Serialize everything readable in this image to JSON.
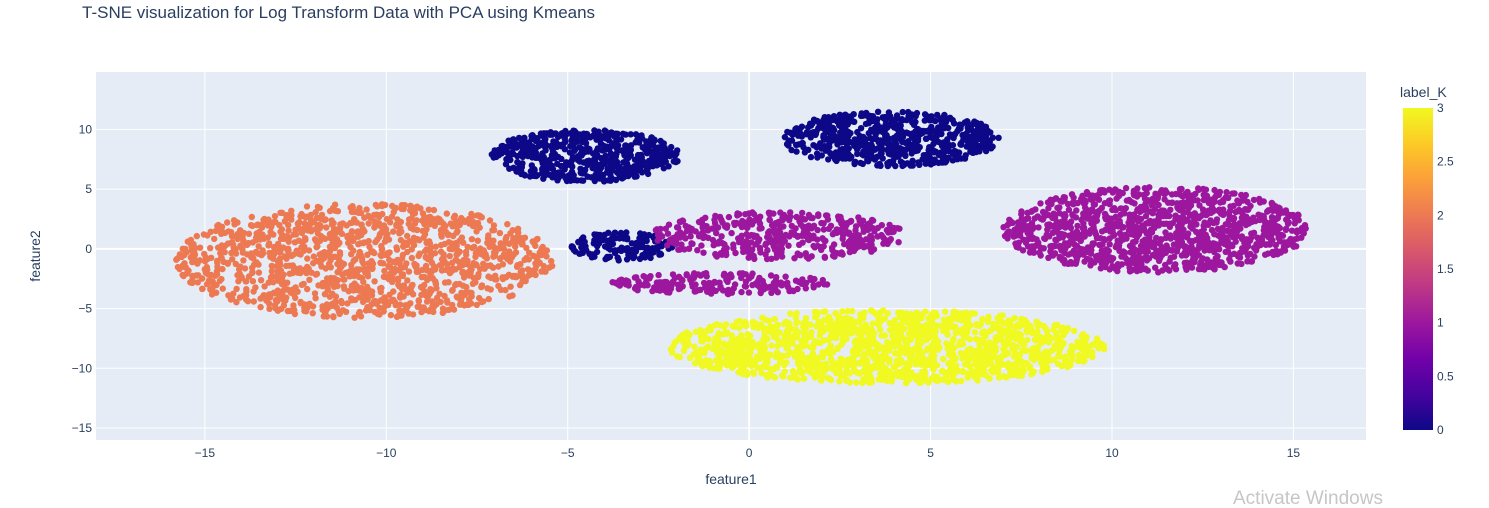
{
  "chart_data": {
    "type": "scatter",
    "title": "T-SNE visualization for Log Transform Data with PCA using Kmeans",
    "xlabel": "feature1",
    "ylabel": "feature2",
    "xlim": [
      -18,
      17
    ],
    "ylim": [
      -16,
      14.8
    ],
    "x_ticks": [
      -15,
      -10,
      -5,
      0,
      5,
      10,
      15
    ],
    "y_ticks": [
      -15,
      -10,
      -5,
      0,
      5,
      10
    ],
    "x_tick_labels": [
      "−15",
      "−10",
      "−5",
      "0",
      "5",
      "10",
      "15"
    ],
    "y_tick_labels": [
      "−15",
      "−10",
      "−5",
      "0",
      "5",
      "10"
    ],
    "grid": true,
    "colorbar": {
      "title": "label_K",
      "range": [
        0,
        3
      ],
      "ticks": [
        0,
        0.5,
        1,
        1.5,
        2,
        2.5,
        3
      ],
      "tick_labels": [
        "0",
        "0.5",
        "1",
        "1.5",
        "2",
        "2.5",
        "3"
      ],
      "colors": [
        "#0d0887",
        "#46039f",
        "#7201a8",
        "#9c179e",
        "#bd3786",
        "#d8576b",
        "#ed7953",
        "#fb9f3a",
        "#fdca26",
        "#f0f921"
      ]
    },
    "clusters": [
      {
        "label": 0,
        "color": "#0d0887",
        "center": [
          -4.5,
          7.8
        ],
        "spread": [
          2.6,
          2.2
        ],
        "count": 520
      },
      {
        "label": 0,
        "color": "#0d0887",
        "center": [
          3.9,
          9.2
        ],
        "spread": [
          3.0,
          2.3
        ],
        "count": 620
      },
      {
        "label": 0,
        "color": "#0d0887",
        "center": [
          -3.5,
          0.2
        ],
        "spread": [
          1.4,
          1.2
        ],
        "count": 140
      },
      {
        "label": 1,
        "color": "#9c179e",
        "center": [
          11.2,
          1.6
        ],
        "spread": [
          4.2,
          3.6
        ],
        "count": 1100
      },
      {
        "label": 1,
        "color": "#9c179e",
        "center": [
          0.8,
          1.1
        ],
        "spread": [
          3.5,
          2.0
        ],
        "count": 420
      },
      {
        "label": 1,
        "color": "#9c179e",
        "center": [
          -0.8,
          -2.9
        ],
        "spread": [
          3.0,
          0.9
        ],
        "count": 180
      },
      {
        "label": 2,
        "color": "#ed7953",
        "center": [
          -10.6,
          -1.0
        ],
        "spread": [
          5.2,
          4.8
        ],
        "count": 1300
      },
      {
        "label": 3,
        "color": "#f0f921",
        "center": [
          3.8,
          -8.2
        ],
        "spread": [
          6.0,
          3.1
        ],
        "count": 1350
      }
    ]
  },
  "watermark": "Activate Windows"
}
